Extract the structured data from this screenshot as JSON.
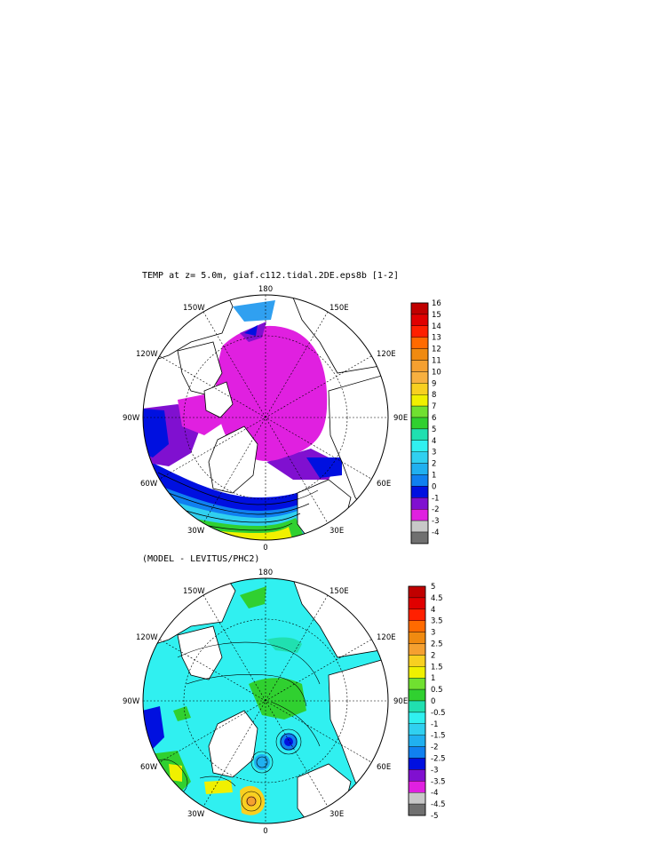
{
  "panels": [
    {
      "title": "TEMP at z=    5.0m, giaf.c112.tidal.2DE.eps8b [1-2]",
      "longitude_labels": {
        "top": "180",
        "bottom": "0",
        "upper_left": "150W",
        "upper_right": "150E",
        "left_upper": "120W",
        "right_upper": "120E",
        "left": "90W",
        "right": "90E",
        "left_lower": "60W",
        "right_lower": "60E",
        "lower_left": "30W",
        "lower_right": "30E"
      },
      "colorbar_labels": [
        "16",
        "15",
        "14",
        "13",
        "12",
        "11",
        "10",
        "9",
        "8",
        "7",
        "6",
        "5",
        "4",
        "3",
        "2",
        "1",
        "0",
        "-1",
        "-2",
        "-3",
        "-4"
      ],
      "colorbar_colors": [
        "#c00000",
        "#e00000",
        "#ff2000",
        "#ff6a00",
        "#f08a10",
        "#f5a030",
        "#f7b040",
        "#f8d020",
        "#f0f000",
        "#70e030",
        "#30d030",
        "#20e0b0",
        "#30f0f0",
        "#30d0f0",
        "#20b0f0",
        "#1080f0",
        "#0010e0",
        "#8010d0",
        "#e020e0",
        "#c8c8c8",
        "#707070"
      ]
    },
    {
      "title": "(MODEL - LEVITUS/PHC2)",
      "longitude_labels": {
        "top": "180",
        "bottom": "0",
        "upper_left": "150W",
        "upper_right": "150E",
        "left_upper": "120W",
        "right_upper": "120E",
        "left": "90W",
        "right": "90E",
        "left_lower": "60W",
        "right_lower": "60E",
        "lower_left": "30W",
        "lower_right": "30E"
      },
      "colorbar_labels": [
        "5",
        "4.5",
        "4",
        "3.5",
        "3",
        "2.5",
        "2",
        "1.5",
        "1",
        "0.5",
        "0",
        "-0.5",
        "-1",
        "-1.5",
        "-2",
        "-2.5",
        "-3",
        "-3.5",
        "-4",
        "-4.5",
        "-5"
      ],
      "colorbar_colors": [
        "#c00000",
        "#e00000",
        "#ff2000",
        "#ff6a00",
        "#f08a10",
        "#f5a030",
        "#f8d020",
        "#f0f000",
        "#70e030",
        "#30d030",
        "#20e0b0",
        "#30f0f0",
        "#30d0f0",
        "#20b0f0",
        "#1080f0",
        "#0010e0",
        "#8010d0",
        "#e020e0",
        "#c8c8c8",
        "#707070"
      ]
    }
  ],
  "colors": {
    "land": "#ffffff",
    "outline": "#000000",
    "panel1_ocean": "#e020e0",
    "panel2_ocean": "#30f0f0"
  }
}
